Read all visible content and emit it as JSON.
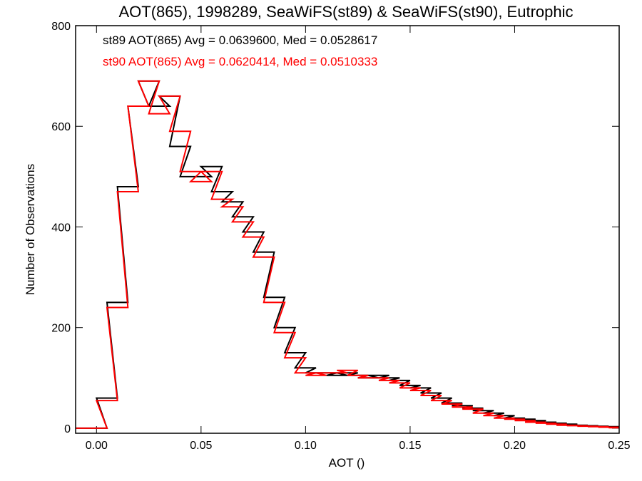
{
  "chart_data": {
    "type": "line",
    "title": "AOT(865), 1998289, SeaWiFS(st89) & SeaWiFS(st90), Eutrophic",
    "xlabel": "AOT ()",
    "ylabel": "Number of Observations",
    "xlim": [
      -0.01,
      0.25
    ],
    "ylim": [
      -10,
      800
    ],
    "xticks": [
      "0.00",
      "0.05",
      "0.10",
      "0.15",
      "0.20",
      "0.25"
    ],
    "yticks": [
      "0",
      "200",
      "400",
      "600",
      "800"
    ],
    "grid": false,
    "annotations": [
      "st89 AOT(865) Avg = 0.0639600, Med = 0.0528617",
      "st90 AOT(865) Avg = 0.0620414, Med = 0.0510333"
    ],
    "colors": {
      "st89": "#000000",
      "st90": "#ff0000"
    },
    "x": [
      -0.01,
      0.0,
      0.005,
      0.01,
      0.015,
      0.02,
      0.025,
      0.03,
      0.035,
      0.04,
      0.045,
      0.05,
      0.055,
      0.06,
      0.065,
      0.07,
      0.075,
      0.08,
      0.085,
      0.09,
      0.095,
      0.1,
      0.105,
      0.11,
      0.115,
      0.12,
      0.125,
      0.13,
      0.135,
      0.14,
      0.145,
      0.15,
      0.155,
      0.16,
      0.165,
      0.17,
      0.175,
      0.18,
      0.185,
      0.19,
      0.195,
      0.2,
      0.205,
      0.21,
      0.215,
      0.22,
      0.225,
      0.23,
      0.235,
      0.24,
      0.245,
      0.25
    ],
    "series": [
      {
        "values": [
          0,
          0,
          60,
          250,
          480,
          640,
          690,
          640,
          660,
          560,
          500,
          500,
          520,
          470,
          450,
          420,
          390,
          350,
          260,
          200,
          150,
          120,
          110,
          110,
          105,
          110,
          105,
          100,
          105,
          100,
          95,
          85,
          80,
          70,
          60,
          50,
          45,
          40,
          35,
          30,
          25,
          20,
          18,
          15,
          12,
          10,
          8,
          6,
          5,
          4,
          3,
          2
        ]
      },
      {
        "values": [
          0,
          0,
          55,
          240,
          470,
          640,
          690,
          625,
          660,
          590,
          510,
          490,
          510,
          455,
          440,
          410,
          380,
          340,
          250,
          190,
          140,
          110,
          105,
          110,
          110,
          115,
          105,
          100,
          100,
          95,
          90,
          80,
          75,
          65,
          55,
          48,
          42,
          38,
          30,
          25,
          20,
          18,
          15,
          12,
          10,
          8,
          6,
          5,
          4,
          3,
          2,
          1
        ]
      }
    ]
  }
}
